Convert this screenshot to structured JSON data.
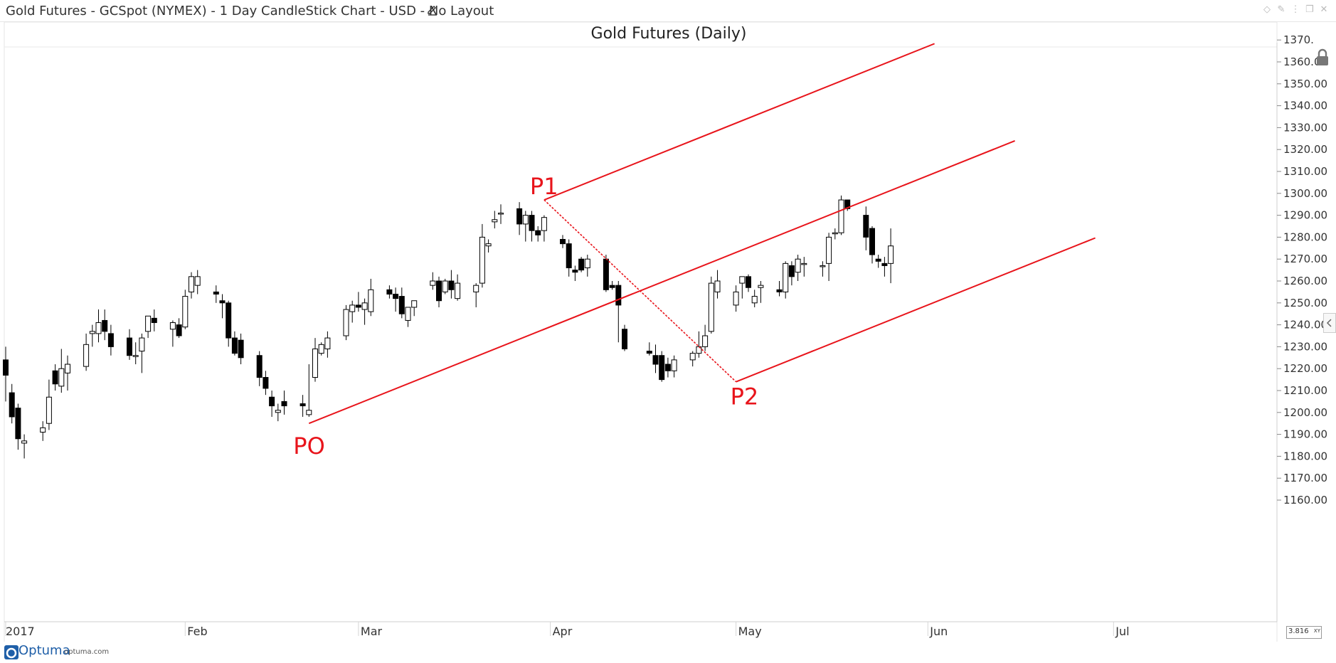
{
  "window": {
    "title": "Gold Futures - GCSpot (NYMEX) - 1 Day CandleStick Chart - USD - No Layout"
  },
  "footer": {
    "brand": "Optuma",
    "url": "optuma.com",
    "zoom": "3.816",
    "zoom_mode": "XY"
  },
  "colors": {
    "up_fill": "#ffffff",
    "down_fill": "#000000",
    "annotation": "#e8141b",
    "grid": "#e2e2e2",
    "axis_text": "#333333"
  },
  "icons": [
    "edit-icon",
    "diamond-icon",
    "pin-icon",
    "settings-icon",
    "restore-icon",
    "close-icon",
    "lock-icon",
    "collapse-arrow-icon",
    "optuma-logo"
  ],
  "chart_data": {
    "type": "candlestick",
    "title": "Gold Futures (Daily)",
    "ylim": [
      1150,
      1372
    ],
    "y_ticks": [
      1160,
      1170,
      1180,
      1190,
      1200,
      1210,
      1220,
      1230,
      1240,
      1250,
      1260,
      1270,
      1280,
      1290,
      1300,
      1310,
      1320,
      1330,
      1340,
      1350,
      1360,
      1370
    ],
    "y_tick_labels": [
      "1160.00",
      "1170.00",
      "1180.00",
      "1190.00",
      "1200.00",
      "1210.00",
      "1220.00",
      "1230.00",
      "1240.00",
      "1250.00",
      "1260.00",
      "1270.00",
      "1280.00",
      "1290.00",
      "1300.00",
      "1310.00",
      "1320.00",
      "1330.00",
      "1340.00",
      "1350.00",
      "1360.00",
      "1370."
    ],
    "x_start": "2017-01-03",
    "x_end": "2017-07-31",
    "month_labels": [
      {
        "date": "2017-01-01",
        "label": "2017"
      },
      {
        "date": "2017-02-01",
        "label": "Feb"
      },
      {
        "date": "2017-03-01",
        "label": "Mar"
      },
      {
        "date": "2017-04-01",
        "label": "Apr"
      },
      {
        "date": "2017-05-01",
        "label": "May"
      },
      {
        "date": "2017-06-01",
        "label": "Jun"
      },
      {
        "date": "2017-07-01",
        "label": "Jul"
      }
    ],
    "grid": "vertical month separators on axis only",
    "candles": [
      {
        "date": "2017-01-03",
        "open": 1224,
        "high": 1230,
        "low": 1205,
        "close": 1217
      },
      {
        "date": "2017-01-04",
        "open": 1209,
        "high": 1213,
        "low": 1195,
        "close": 1198
      },
      {
        "date": "2017-01-05",
        "open": 1202,
        "high": 1204,
        "low": 1183,
        "close": 1188
      },
      {
        "date": "2017-01-06",
        "open": 1186,
        "high": 1190,
        "low": 1179,
        "close": 1187
      },
      {
        "date": "2017-01-09",
        "open": 1191,
        "high": 1196,
        "low": 1187,
        "close": 1193
      },
      {
        "date": "2017-01-10",
        "open": 1195,
        "high": 1215,
        "low": 1192,
        "close": 1207
      },
      {
        "date": "2017-01-11",
        "open": 1219,
        "high": 1222,
        "low": 1210,
        "close": 1213
      },
      {
        "date": "2017-01-12",
        "open": 1212,
        "high": 1229,
        "low": 1209,
        "close": 1220
      },
      {
        "date": "2017-01-13",
        "open": 1218,
        "high": 1226,
        "low": 1210,
        "close": 1222
      },
      {
        "date": "2017-01-16",
        "open": 1221,
        "high": 1236,
        "low": 1219,
        "close": 1231
      },
      {
        "date": "2017-01-17",
        "open": 1236,
        "high": 1240,
        "low": 1230,
        "close": 1237
      },
      {
        "date": "2017-01-18",
        "open": 1236,
        "high": 1247,
        "low": 1232,
        "close": 1241
      },
      {
        "date": "2017-01-19",
        "open": 1242,
        "high": 1247,
        "low": 1233,
        "close": 1237
      },
      {
        "date": "2017-01-20",
        "open": 1236,
        "high": 1240,
        "low": 1226,
        "close": 1230
      },
      {
        "date": "2017-01-23",
        "open": 1234,
        "high": 1238,
        "low": 1224,
        "close": 1226
      },
      {
        "date": "2017-01-24",
        "open": 1226,
        "high": 1232,
        "low": 1222,
        "close": 1226
      },
      {
        "date": "2017-01-25",
        "open": 1228,
        "high": 1236,
        "low": 1218,
        "close": 1234
      },
      {
        "date": "2017-01-26",
        "open": 1237,
        "high": 1244,
        "low": 1234,
        "close": 1244
      },
      {
        "date": "2017-01-27",
        "open": 1243,
        "high": 1247,
        "low": 1237,
        "close": 1241
      },
      {
        "date": "2017-01-30",
        "open": 1238,
        "high": 1242,
        "low": 1230,
        "close": 1241
      },
      {
        "date": "2017-01-31",
        "open": 1240,
        "high": 1243,
        "low": 1234,
        "close": 1235
      },
      {
        "date": "2017-02-01",
        "open": 1239,
        "high": 1256,
        "low": 1238,
        "close": 1253
      },
      {
        "date": "2017-02-02",
        "open": 1255,
        "high": 1264,
        "low": 1252,
        "close": 1262
      },
      {
        "date": "2017-02-03",
        "open": 1258,
        "high": 1265,
        "low": 1254,
        "close": 1262
      },
      {
        "date": "2017-02-06",
        "open": 1255,
        "high": 1258,
        "low": 1250,
        "close": 1254
      },
      {
        "date": "2017-02-07",
        "open": 1251,
        "high": 1254,
        "low": 1243,
        "close": 1250
      },
      {
        "date": "2017-02-08",
        "open": 1250,
        "high": 1251,
        "low": 1230,
        "close": 1234
      },
      {
        "date": "2017-02-09",
        "open": 1234,
        "high": 1237,
        "low": 1226,
        "close": 1227
      },
      {
        "date": "2017-02-10",
        "open": 1233,
        "high": 1236,
        "low": 1222,
        "close": 1225
      },
      {
        "date": "2017-02-13",
        "open": 1226,
        "high": 1228,
        "low": 1212,
        "close": 1216
      },
      {
        "date": "2017-02-14",
        "open": 1216,
        "high": 1219,
        "low": 1208,
        "close": 1211
      },
      {
        "date": "2017-02-15",
        "open": 1207,
        "high": 1210,
        "low": 1198,
        "close": 1203
      },
      {
        "date": "2017-02-16",
        "open": 1200,
        "high": 1204,
        "low": 1196,
        "close": 1201
      },
      {
        "date": "2017-02-17",
        "open": 1205,
        "high": 1210,
        "low": 1199,
        "close": 1203
      },
      {
        "date": "2017-02-20",
        "open": 1204,
        "high": 1208,
        "low": 1198,
        "close": 1203
      },
      {
        "date": "2017-02-21",
        "open": 1199,
        "high": 1222,
        "low": 1198,
        "close": 1201
      },
      {
        "date": "2017-02-22",
        "open": 1216,
        "high": 1234,
        "low": 1214,
        "close": 1229
      },
      {
        "date": "2017-02-23",
        "open": 1227,
        "high": 1232,
        "low": 1226,
        "close": 1231
      },
      {
        "date": "2017-02-24",
        "open": 1229,
        "high": 1237,
        "low": 1225,
        "close": 1234
      },
      {
        "date": "2017-02-27",
        "open": 1235,
        "high": 1249,
        "low": 1233,
        "close": 1247
      },
      {
        "date": "2017-02-28",
        "open": 1246,
        "high": 1251,
        "low": 1241,
        "close": 1249
      },
      {
        "date": "2017-03-01",
        "open": 1249,
        "high": 1255,
        "low": 1246,
        "close": 1248
      },
      {
        "date": "2017-03-02",
        "open": 1247,
        "high": 1252,
        "low": 1240,
        "close": 1250
      },
      {
        "date": "2017-03-03",
        "open": 1246,
        "high": 1261,
        "low": 1244,
        "close": 1256
      },
      {
        "date": "2017-03-06",
        "open": 1256,
        "high": 1258,
        "low": 1252,
        "close": 1254
      },
      {
        "date": "2017-03-07",
        "open": 1254,
        "high": 1257,
        "low": 1246,
        "close": 1252
      },
      {
        "date": "2017-03-08",
        "open": 1253,
        "high": 1257,
        "low": 1243,
        "close": 1245
      },
      {
        "date": "2017-03-09",
        "open": 1242,
        "high": 1248,
        "low": 1239,
        "close": 1248
      },
      {
        "date": "2017-03-10",
        "open": 1248,
        "high": 1251,
        "low": 1244,
        "close": 1251
      },
      {
        "date": "2017-03-13",
        "open": 1258,
        "high": 1264,
        "low": 1256,
        "close": 1260
      },
      {
        "date": "2017-03-14",
        "open": 1260,
        "high": 1262,
        "low": 1248,
        "close": 1251
      },
      {
        "date": "2017-03-15",
        "open": 1255,
        "high": 1261,
        "low": 1254,
        "close": 1260
      },
      {
        "date": "2017-03-16",
        "open": 1260,
        "high": 1265,
        "low": 1252,
        "close": 1256
      },
      {
        "date": "2017-03-17",
        "open": 1252,
        "high": 1263,
        "low": 1251,
        "close": 1259
      },
      {
        "date": "2017-03-20",
        "open": 1255,
        "high": 1259,
        "low": 1248,
        "close": 1258
      },
      {
        "date": "2017-03-21",
        "open": 1259,
        "high": 1286,
        "low": 1257,
        "close": 1280
      },
      {
        "date": "2017-03-22",
        "open": 1276,
        "high": 1279,
        "low": 1273,
        "close": 1277
      },
      {
        "date": "2017-03-23",
        "open": 1287,
        "high": 1292,
        "low": 1284,
        "close": 1288
      },
      {
        "date": "2017-03-24",
        "open": 1291,
        "high": 1295,
        "low": 1286,
        "close": 1291
      },
      {
        "date": "2017-03-27",
        "open": 1293,
        "high": 1296,
        "low": 1281,
        "close": 1286
      },
      {
        "date": "2017-03-28",
        "open": 1286,
        "high": 1292,
        "low": 1278,
        "close": 1290
      },
      {
        "date": "2017-03-29",
        "open": 1290,
        "high": 1292,
        "low": 1278,
        "close": 1283
      },
      {
        "date": "2017-03-30",
        "open": 1283,
        "high": 1285,
        "low": 1278,
        "close": 1281
      },
      {
        "date": "2017-03-31",
        "open": 1283,
        "high": 1290,
        "low": 1278,
        "close": 1289
      },
      {
        "date": "2017-04-03",
        "open": 1279,
        "high": 1281,
        "low": 1275,
        "close": 1277
      },
      {
        "date": "2017-04-04",
        "open": 1277,
        "high": 1279,
        "low": 1262,
        "close": 1266
      },
      {
        "date": "2017-04-05",
        "open": 1265,
        "high": 1267,
        "low": 1260,
        "close": 1264
      },
      {
        "date": "2017-04-06",
        "open": 1270,
        "high": 1271,
        "low": 1264,
        "close": 1265
      },
      {
        "date": "2017-04-07",
        "open": 1266,
        "high": 1272,
        "low": 1262,
        "close": 1270
      },
      {
        "date": "2017-04-10",
        "open": 1270,
        "high": 1272,
        "low": 1255,
        "close": 1256
      },
      {
        "date": "2017-04-11",
        "open": 1258,
        "high": 1260,
        "low": 1256,
        "close": 1257
      },
      {
        "date": "2017-04-12",
        "open": 1258,
        "high": 1260,
        "low": 1232,
        "close": 1249
      },
      {
        "date": "2017-04-13",
        "open": 1238,
        "high": 1240,
        "low": 1228,
        "close": 1229
      },
      {
        "date": "2017-04-17",
        "open": 1228,
        "high": 1232,
        "low": 1226,
        "close": 1227
      },
      {
        "date": "2017-04-18",
        "open": 1226,
        "high": 1231,
        "low": 1218,
        "close": 1222
      },
      {
        "date": "2017-04-19",
        "open": 1226,
        "high": 1228,
        "low": 1214,
        "close": 1215
      },
      {
        "date": "2017-04-20",
        "open": 1222,
        "high": 1225,
        "low": 1216,
        "close": 1219
      },
      {
        "date": "2017-04-21",
        "open": 1219,
        "high": 1226,
        "low": 1216,
        "close": 1224
      },
      {
        "date": "2017-04-24",
        "open": 1224,
        "high": 1228,
        "low": 1221,
        "close": 1227
      },
      {
        "date": "2017-04-25",
        "open": 1227,
        "high": 1237,
        "low": 1225,
        "close": 1230
      },
      {
        "date": "2017-04-26",
        "open": 1230,
        "high": 1240,
        "low": 1228,
        "close": 1235
      },
      {
        "date": "2017-04-27",
        "open": 1237,
        "high": 1262,
        "low": 1236,
        "close": 1259
      },
      {
        "date": "2017-04-28",
        "open": 1255,
        "high": 1265,
        "low": 1252,
        "close": 1260
      },
      {
        "date": "2017-05-01",
        "open": 1249,
        "high": 1258,
        "low": 1246,
        "close": 1255
      },
      {
        "date": "2017-05-02",
        "open": 1259,
        "high": 1262,
        "low": 1252,
        "close": 1262
      },
      {
        "date": "2017-05-03",
        "open": 1262,
        "high": 1263,
        "low": 1255,
        "close": 1257
      },
      {
        "date": "2017-05-04",
        "open": 1250,
        "high": 1256,
        "low": 1248,
        "close": 1253
      },
      {
        "date": "2017-05-05",
        "open": 1257,
        "high": 1260,
        "low": 1250,
        "close": 1258
      },
      {
        "date": "2017-05-08",
        "open": 1256,
        "high": 1260,
        "low": 1253,
        "close": 1255
      },
      {
        "date": "2017-05-09",
        "open": 1255,
        "high": 1269,
        "low": 1252,
        "close": 1268
      },
      {
        "date": "2017-05-10",
        "open": 1267,
        "high": 1269,
        "low": 1258,
        "close": 1262
      },
      {
        "date": "2017-05-11",
        "open": 1264,
        "high": 1272,
        "low": 1260,
        "close": 1270
      },
      {
        "date": "2017-05-12",
        "open": 1268,
        "high": 1271,
        "low": 1262,
        "close": 1268
      },
      {
        "date": "2017-05-15",
        "open": 1267,
        "high": 1269,
        "low": 1262,
        "close": 1267
      },
      {
        "date": "2017-05-16",
        "open": 1268,
        "high": 1282,
        "low": 1260,
        "close": 1280
      },
      {
        "date": "2017-05-17",
        "open": 1282,
        "high": 1284,
        "low": 1279,
        "close": 1282
      },
      {
        "date": "2017-05-18",
        "open": 1282,
        "high": 1299,
        "low": 1281,
        "close": 1297
      },
      {
        "date": "2017-05-19",
        "open": 1297,
        "high": 1297,
        "low": 1292,
        "close": 1293
      },
      {
        "date": "2017-05-22",
        "open": 1290,
        "high": 1294,
        "low": 1274,
        "close": 1280
      },
      {
        "date": "2017-05-23",
        "open": 1284,
        "high": 1285,
        "low": 1268,
        "close": 1272
      },
      {
        "date": "2017-05-24",
        "open": 1270,
        "high": 1272,
        "low": 1266,
        "close": 1269
      },
      {
        "date": "2017-05-25",
        "open": 1268,
        "high": 1271,
        "low": 1262,
        "close": 1267
      },
      {
        "date": "2017-05-26",
        "open": 1268,
        "high": 1284,
        "low": 1259,
        "close": 1276
      }
    ],
    "andrews_pitchfork": {
      "points": [
        {
          "label": "PO",
          "date": "2017-02-21",
          "value": 1195
        },
        {
          "label": "P1",
          "date": "2017-03-31",
          "value": 1297
        },
        {
          "label": "P2",
          "date": "2017-05-01",
          "value": 1214
        }
      ],
      "extend_to": "2017-06-30"
    }
  }
}
